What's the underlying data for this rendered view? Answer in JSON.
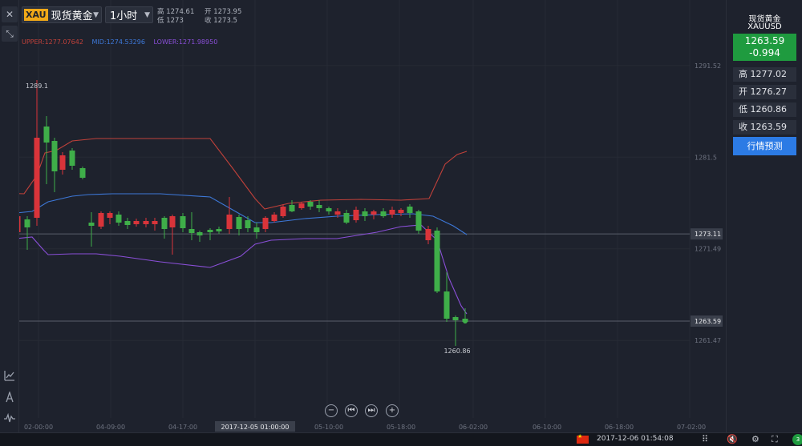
{
  "header": {
    "symbol_badge": "XAU",
    "symbol_name": "现货黄金",
    "period": "1小时",
    "ohlc": {
      "high_label": "高",
      "high": "1274.61",
      "low_label": "低",
      "low": "1273",
      "open_label": "开",
      "open": "1273.95",
      "close_label": "收",
      "close": "1273.5"
    }
  },
  "indicator": {
    "upper": "UPPER:1277.07642",
    "mid": "MID:1274.53296",
    "lower": "LOWER:1271.98950",
    "colors": {
      "upper": "#c0413a",
      "mid": "#3d78d8",
      "lower": "#8a4fd8"
    }
  },
  "right_panel": {
    "name": "现货黄金",
    "code": "XAUUSD",
    "price": "1263.59",
    "change": "-0.994",
    "stats": [
      {
        "label": "高",
        "value": "1277.02"
      },
      {
        "label": "开",
        "value": "1276.27"
      },
      {
        "label": "低",
        "value": "1260.86"
      },
      {
        "label": "收",
        "value": "1263.59"
      }
    ],
    "forecast_button": "行情预测"
  },
  "chart_data": {
    "type": "candlestick",
    "y_axis_labels": [
      "1291.52",
      "1281.5",
      "1273.11",
      "1271.49",
      "1263.59",
      "1261.47"
    ],
    "x_axis_labels": [
      "02-00:00",
      "04-09:00",
      "04-17:00",
      "2017-12-05 01:00:00",
      "05-10:00",
      "05-18:00",
      "06-02:00",
      "06-10:00",
      "06-18:00",
      "07-02:00"
    ],
    "current_price": "1263.59",
    "crosshair_price": "1273.11",
    "annotations": {
      "max": "1289.1",
      "min": "1260.86"
    },
    "colors": {
      "up": "#d9343a",
      "down": "#3fae49",
      "grid": "#262a35"
    }
  },
  "zoom_controls": [
    "−",
    "⏮",
    "⏭",
    "+"
  ],
  "taskbar": {
    "clock": "2017-12-06 01:54:08",
    "notification_count": "3"
  }
}
